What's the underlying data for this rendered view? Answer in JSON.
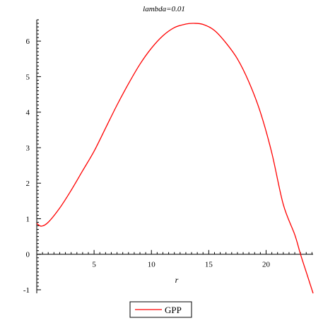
{
  "chart_data": {
    "type": "line",
    "title": "lambda=0.01",
    "xlabel": "r",
    "ylabel": "",
    "xlim": [
      0,
      24.1
    ],
    "ylim": [
      -1.1,
      6.6
    ],
    "grid": false,
    "legend_position": "bottom",
    "x_ticks": [
      5,
      10,
      15,
      20
    ],
    "x_tick_labels": [
      "5",
      "10",
      "15",
      "20"
    ],
    "y_ticks": [
      -1,
      0,
      1,
      2,
      3,
      4,
      5,
      6
    ],
    "y_tick_labels": [
      "-1",
      "0",
      "1",
      "2",
      "3",
      "4",
      "5",
      "6"
    ],
    "series": [
      {
        "name": "GPP",
        "color": "#ff0000",
        "x": [
          0,
          0.4,
          1,
          2,
          3,
          4,
          5,
          6,
          7,
          8,
          9,
          10,
          11,
          12,
          13,
          13.7,
          14.5,
          15.5,
          16.5,
          17.5,
          18.5,
          19.5,
          20.5,
          21.5,
          22.5,
          23,
          23.5,
          24.1
        ],
        "y": [
          0.87,
          0.79,
          0.9,
          1.3,
          1.8,
          2.35,
          2.9,
          3.55,
          4.2,
          4.8,
          5.35,
          5.8,
          6.15,
          6.38,
          6.48,
          6.5,
          6.47,
          6.3,
          5.95,
          5.5,
          4.85,
          4.0,
          2.85,
          1.4,
          0.55,
          0.0,
          -0.5,
          -1.1
        ]
      }
    ]
  }
}
